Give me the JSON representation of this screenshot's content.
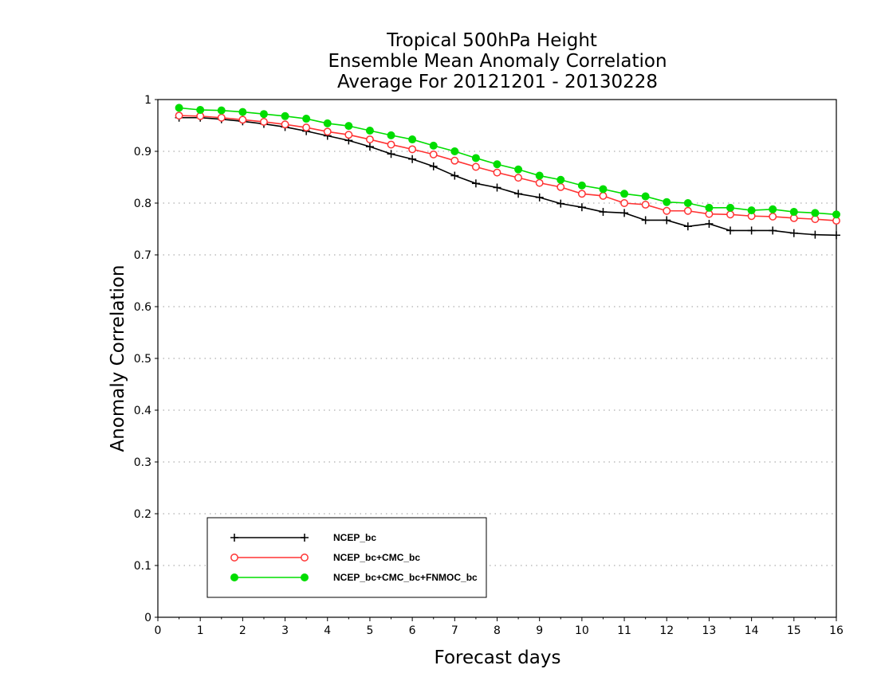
{
  "chart_data": {
    "type": "line",
    "title": [
      "Tropical 500hPa Height",
      "Ensemble Mean Anomaly Correlation",
      "Average For 20121201 - 20130228"
    ],
    "xlabel": "Forecast days",
    "ylabel": "Anomaly Correlation",
    "xlim": [
      0,
      16
    ],
    "ylim": [
      0,
      1
    ],
    "xticks": [
      0,
      1,
      2,
      3,
      4,
      5,
      6,
      7,
      8,
      9,
      10,
      11,
      12,
      13,
      14,
      15,
      16
    ],
    "yticks": [
      0,
      0.1,
      0.2,
      0.3,
      0.4,
      0.5,
      0.6,
      0.7,
      0.8,
      0.9,
      1
    ],
    "ytick_labels": [
      "0",
      "0.1",
      "0.2",
      "0.3",
      "0.4",
      "0.5",
      "0.6",
      "0.7",
      "0.8",
      "0.9",
      "1"
    ],
    "grid": "horizontal dotted",
    "legend_position": "bottom-left",
    "x": [
      0.5,
      1,
      1.5,
      2,
      2.5,
      3,
      3.5,
      4,
      4.5,
      5,
      5.5,
      6,
      6.5,
      7,
      7.5,
      8,
      8.5,
      9,
      9.5,
      10,
      10.5,
      11,
      11.5,
      12,
      12.5,
      13,
      13.5,
      14,
      14.5,
      15,
      15.5,
      16
    ],
    "series": [
      {
        "name": "NCEP_bc",
        "color": "#000000",
        "marker": "plus",
        "values": [
          0.965,
          0.965,
          0.962,
          0.958,
          0.953,
          0.947,
          0.939,
          0.93,
          0.921,
          0.909,
          0.895,
          0.885,
          0.871,
          0.853,
          0.838,
          0.83,
          0.818,
          0.811,
          0.799,
          0.792,
          0.783,
          0.781,
          0.767,
          0.767,
          0.755,
          0.76,
          0.747,
          0.747,
          0.747,
          0.742,
          0.739,
          0.738
        ]
      },
      {
        "name": "NCEP_bc+CMC_bc",
        "color": "#ff3333",
        "marker": "open-circle",
        "values": [
          0.969,
          0.968,
          0.965,
          0.961,
          0.957,
          0.952,
          0.946,
          0.938,
          0.932,
          0.923,
          0.913,
          0.904,
          0.894,
          0.882,
          0.87,
          0.859,
          0.849,
          0.839,
          0.831,
          0.818,
          0.814,
          0.8,
          0.797,
          0.785,
          0.785,
          0.779,
          0.778,
          0.775,
          0.774,
          0.771,
          0.769,
          0.766
        ]
      },
      {
        "name": "NCEP_bc+CMC_bc+FNMOC_bc",
        "color": "#00dd00",
        "marker": "filled-circle",
        "values": [
          0.984,
          0.98,
          0.979,
          0.976,
          0.972,
          0.968,
          0.963,
          0.954,
          0.949,
          0.94,
          0.931,
          0.923,
          0.911,
          0.9,
          0.887,
          0.875,
          0.865,
          0.853,
          0.845,
          0.834,
          0.827,
          0.818,
          0.813,
          0.802,
          0.8,
          0.791,
          0.791,
          0.786,
          0.788,
          0.783,
          0.781,
          0.778
        ]
      }
    ]
  }
}
